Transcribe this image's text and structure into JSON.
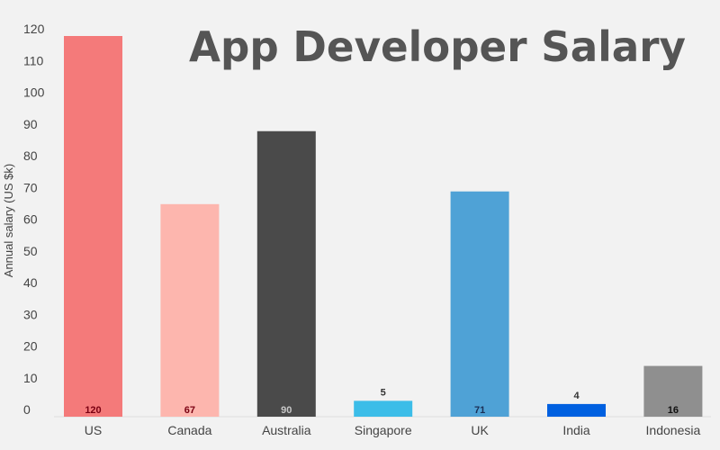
{
  "chart_data": {
    "type": "bar",
    "title": "App Developer Salary",
    "xlabel": "",
    "ylabel": "Annual salary (US $k)",
    "ylim": [
      0,
      120
    ],
    "yticks": [
      0,
      10,
      20,
      30,
      40,
      50,
      60,
      70,
      80,
      90,
      100,
      110,
      120
    ],
    "grid": false,
    "categories": [
      "US",
      "Canada",
      "Australia",
      "Singapore",
      "UK",
      "India",
      "Indonesia"
    ],
    "values": [
      120,
      67,
      90,
      5,
      71,
      4,
      16
    ],
    "bar_colors": [
      "#f47a7a",
      "#fdb6ae",
      "#4a4a4a",
      "#3cbde8",
      "#4fa2d6",
      "#0060e0",
      "#8f8f8f"
    ],
    "label_colors": [
      "#7a0012",
      "#7a0012",
      "#c8c8c8",
      "#333333",
      "#1b2f55",
      "#333333",
      "#111111"
    ],
    "label_positions": [
      "inside-base",
      "inside-base",
      "inside-base",
      "above",
      "inside-base",
      "above",
      "inside-base"
    ]
  }
}
